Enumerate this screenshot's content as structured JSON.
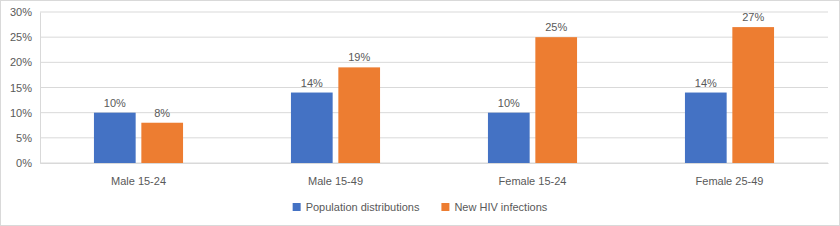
{
  "chart_data": {
    "type": "bar",
    "categories": [
      "Male 15-24",
      "Male 15-49",
      "Female 15-24",
      "Female 25-49"
    ],
    "series": [
      {
        "name": "Population distributions",
        "color": "#4472c4",
        "values": [
          10,
          14,
          10,
          14
        ],
        "value_labels": [
          "10%",
          "14%",
          "10%",
          "14%"
        ]
      },
      {
        "name": "New HIV infections",
        "color": "#ed7d31",
        "values": [
          8,
          19,
          25,
          27
        ],
        "value_labels": [
          "8%",
          "19%",
          "25%",
          "27%"
        ]
      }
    ],
    "ylim": [
      0,
      30
    ],
    "yticks": [
      {
        "value": 0,
        "label": "0%"
      },
      {
        "value": 5,
        "label": "5%"
      },
      {
        "value": 10,
        "label": "10%"
      },
      {
        "value": 15,
        "label": "15%"
      },
      {
        "value": 20,
        "label": "20%"
      },
      {
        "value": 25,
        "label": "25%"
      },
      {
        "value": 30,
        "label": "30%"
      }
    ],
    "grid": true,
    "data_labels": true,
    "legend": "bottom"
  }
}
